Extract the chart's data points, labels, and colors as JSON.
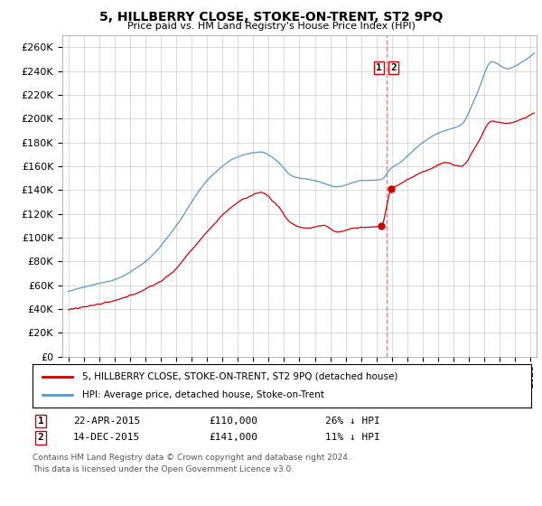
{
  "title": "5, HILLBERRY CLOSE, STOKE-ON-TRENT, ST2 9PQ",
  "subtitle": "Price paid vs. HM Land Registry's House Price Index (HPI)",
  "ylim": [
    0,
    270000
  ],
  "yticks": [
    0,
    20000,
    40000,
    60000,
    80000,
    100000,
    120000,
    140000,
    160000,
    180000,
    200000,
    220000,
    240000,
    260000
  ],
  "xlim_start": 1994.6,
  "xlim_end": 2025.4,
  "sale1_date": 2015.31,
  "sale1_price": 110000,
  "sale1_label": "22-APR-2015",
  "sale1_hpi_diff": "26% ↓ HPI",
  "sale2_date": 2015.96,
  "sale2_price": 141000,
  "sale2_label": "14-DEC-2015",
  "sale2_hpi_diff": "11% ↓ HPI",
  "property_legend": "5, HILLBERRY CLOSE, STOKE-ON-TRENT, ST2 9PQ (detached house)",
  "hpi_legend": "HPI: Average price, detached house, Stoke-on-Trent",
  "footer1": "Contains HM Land Registry data © Crown copyright and database right 2024.",
  "footer2": "This data is licensed under the Open Government Licence v3.0.",
  "line_color_property": "#cc0000",
  "line_color_hpi": "#5599cc",
  "marker_color_property": "#cc0000",
  "vline_color": "#dd6666",
  "box_edge_color": "#cc0000",
  "background_color": "#ffffff",
  "grid_color": "#cccccc",
  "label1": "1",
  "label2": "2"
}
